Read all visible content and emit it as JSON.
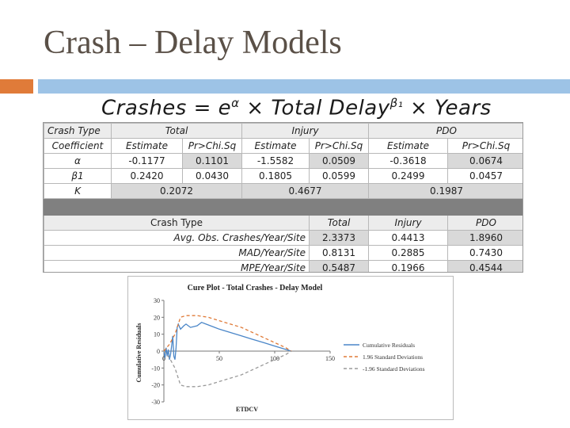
{
  "slide": {
    "title": "Crash – Delay Models",
    "formula": {
      "lhs": "Crashes",
      "eq": " = e",
      "alpha": "α",
      "mid": " × Total Delay",
      "beta": "β₁",
      "end": " × Years"
    }
  },
  "table1": {
    "groups": [
      "Crash Type",
      "Total",
      "Injury",
      "PDO"
    ],
    "subheaders": [
      "Coefficient",
      "Estimate",
      "Pr>Chi.Sq",
      "Estimate",
      "Pr>Chi.Sq",
      "Estimate",
      "Pr>Chi.Sq"
    ],
    "rows": [
      {
        "label": "α",
        "cells": [
          "-0.1177",
          "0.1101",
          "-1.5582",
          "0.0509",
          "-0.3618",
          "0.0674"
        ]
      },
      {
        "label": "β1",
        "cells": [
          "0.2420",
          "0.0430",
          "0.1805",
          "0.0599",
          "0.2499",
          "0.0457"
        ]
      }
    ],
    "k_row": {
      "label": "K",
      "cells": [
        "0.2072",
        "0.4677",
        "0.1987"
      ]
    }
  },
  "table2": {
    "headers": [
      "Crash Type",
      "Total",
      "Injury",
      "PDO"
    ],
    "rows": [
      {
        "label": "Avg. Obs. Crashes/Year/Site",
        "cells": [
          "2.3373",
          "0.4413",
          "1.8960"
        ]
      },
      {
        "label": "MAD/Year/Site",
        "cells": [
          "0.8131",
          "0.2885",
          "0.7430"
        ]
      },
      {
        "label": "MPE/Year/Site",
        "cells": [
          "0.5487",
          "0.1966",
          "0.4544"
        ]
      }
    ]
  },
  "chart_data": {
    "type": "line",
    "title": "Cure Plot - Total Crashes - Delay Model",
    "xlabel": "ETDCV",
    "ylabel": "Cumulative Residuals",
    "xlim": [
      0,
      150
    ],
    "ylim": [
      -30,
      30
    ],
    "xticks": [
      "0",
      "50",
      "100",
      "150"
    ],
    "yticks": [
      "30",
      "20",
      "10",
      "0",
      "-10",
      "-20",
      "-30"
    ],
    "legend_position": "right",
    "grid": false,
    "series": [
      {
        "name": "Cumulative Residuals",
        "color": "#4a86c8",
        "style": "solid",
        "x": [
          0,
          1,
          2,
          3,
          4,
          5,
          6,
          7,
          8,
          9,
          10,
          11,
          12,
          13,
          15,
          18,
          20,
          24,
          30,
          34,
          38,
          42,
          46,
          50,
          60,
          70,
          80,
          90,
          100,
          110,
          115
        ],
        "y": [
          0,
          -4,
          2,
          -3,
          1,
          -5,
          -2,
          3,
          9,
          -3,
          -5,
          2,
          14,
          16,
          13,
          15,
          16,
          14,
          15,
          17,
          16,
          15,
          14,
          13,
          11,
          9,
          7,
          5,
          3,
          1,
          0
        ]
      },
      {
        "name": "1.96 Standard Deviations",
        "color": "#e07b39",
        "style": "dashed",
        "x": [
          0,
          5,
          10,
          15,
          20,
          30,
          40,
          50,
          60,
          70,
          80,
          90,
          100,
          110,
          115
        ],
        "y": [
          0,
          4,
          10,
          20,
          21,
          21,
          20,
          18,
          16,
          14,
          11,
          8,
          5,
          2,
          0
        ]
      },
      {
        "name": "-1.96 Standard Deviations",
        "color": "#9a9a9a",
        "style": "dashed",
        "x": [
          0,
          5,
          10,
          15,
          20,
          30,
          40,
          50,
          60,
          70,
          80,
          90,
          100,
          110,
          115
        ],
        "y": [
          0,
          -4,
          -10,
          -20,
          -21,
          -21,
          -20,
          -18,
          -16,
          -14,
          -11,
          -8,
          -5,
          -2,
          0
        ]
      }
    ]
  }
}
